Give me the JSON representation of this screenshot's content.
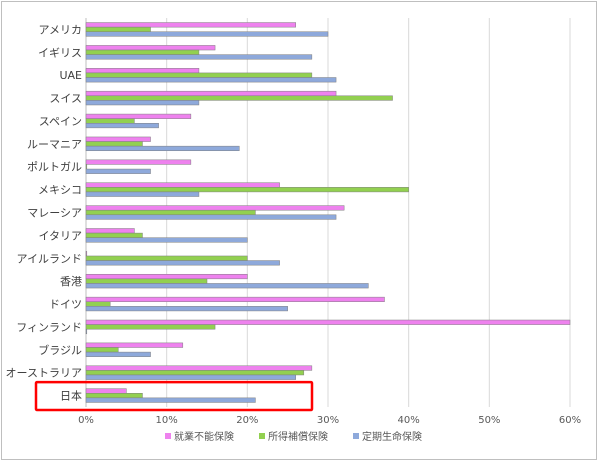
{
  "chart_data": {
    "type": "bar",
    "orientation": "horizontal",
    "categories": [
      "アメリカ",
      "イギリス",
      "UAE",
      "スイス",
      "スペイン",
      "ルーマニア",
      "ポルトガル",
      "メキシコ",
      "マレーシア",
      "イタリア",
      "アイルランド",
      "香港",
      "ドイツ",
      "フィンランド",
      "ブラジル",
      "オーストラリア",
      "日本"
    ],
    "series": [
      {
        "name": "就業不能保険",
        "color": "#ee82ee",
        "values": [
          26,
          16,
          14,
          31,
          13,
          8,
          13,
          24,
          32,
          6,
          0,
          20,
          37,
          60,
          12,
          28,
          5
        ]
      },
      {
        "name": "所得補償保険",
        "color": "#92d050",
        "values": [
          8,
          14,
          28,
          38,
          6,
          7,
          0,
          40,
          21,
          7,
          20,
          15,
          3,
          16,
          4,
          27,
          7
        ]
      },
      {
        "name": "定期生命保険",
        "color": "#8ea9db",
        "values": [
          30,
          28,
          31,
          14,
          9,
          19,
          8,
          14,
          31,
          20,
          24,
          35,
          25,
          0,
          8,
          26,
          21
        ]
      }
    ],
    "x_ticks": [
      "0%",
      "10%",
      "20%",
      "30%",
      "40%",
      "50%",
      "60%"
    ],
    "xlim": [
      0,
      60
    ],
    "grid": true,
    "legend_position": "bottom",
    "highlighted_category": "日本",
    "highlight_color": "#ff0000"
  }
}
